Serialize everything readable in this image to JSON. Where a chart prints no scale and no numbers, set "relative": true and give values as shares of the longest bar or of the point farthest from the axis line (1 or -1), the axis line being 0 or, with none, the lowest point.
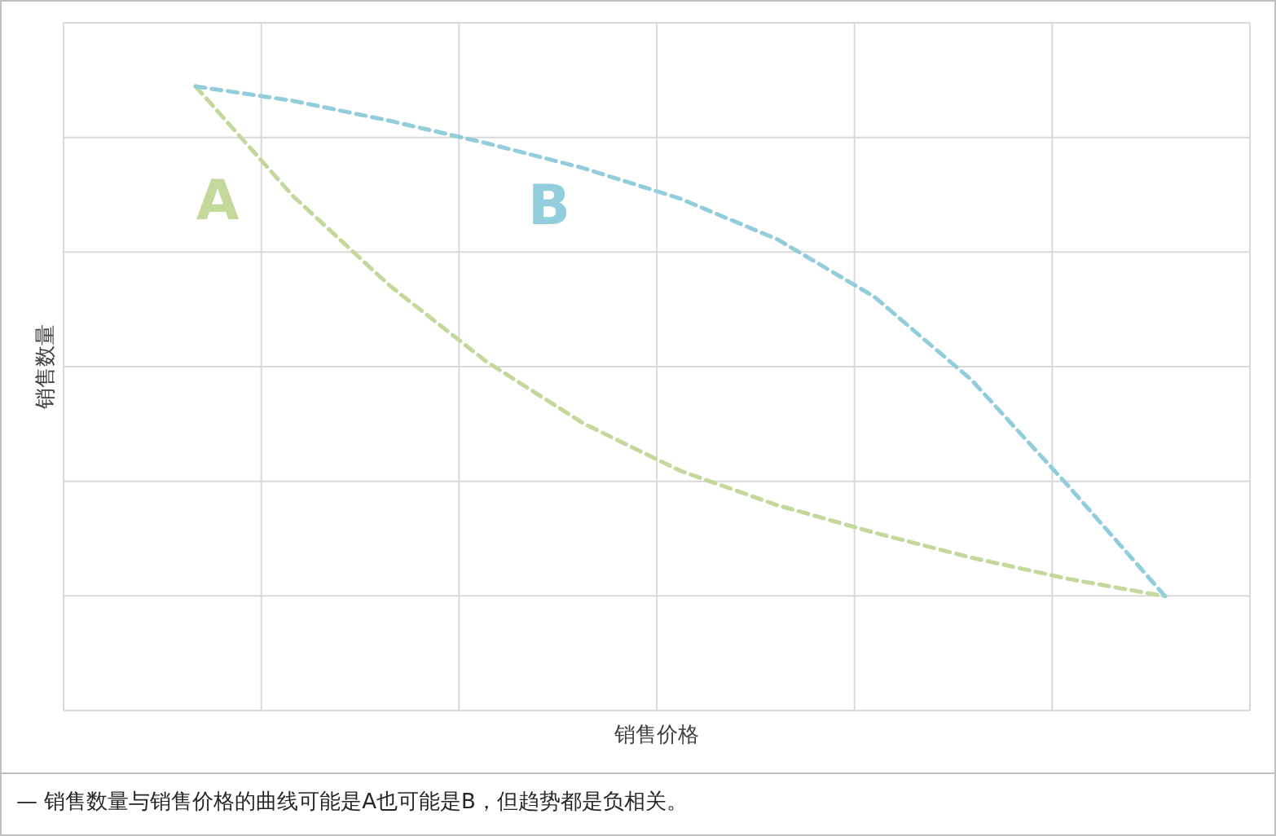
{
  "chart_data": {
    "type": "line",
    "relative": true,
    "xlabel": "销售价格",
    "ylabel": "销售数量",
    "grid": true,
    "line_style": "dashed",
    "marker": "none",
    "categories": [
      null,
      null,
      null,
      null,
      null,
      null,
      null,
      null,
      null,
      null,
      null
    ],
    "series": [
      {
        "name": "A",
        "color": "#c4d89b",
        "values": [
          1,
          0.825,
          0.681,
          0.559,
          0.46,
          0.384,
          0.329,
          0.285,
          0.245,
          0.211,
          0.183
        ]
      },
      {
        "name": "B",
        "color": "#92cddc",
        "values": [
          1,
          0.977,
          0.945,
          0.909,
          0.869,
          0.82,
          0.755,
          0.663,
          0.53,
          0.36,
          0.183
        ]
      }
    ],
    "annotations": [
      "— 销售数量与销售价格的曲线可能是A也可能是B，但趋势都是负相关。"
    ]
  }
}
